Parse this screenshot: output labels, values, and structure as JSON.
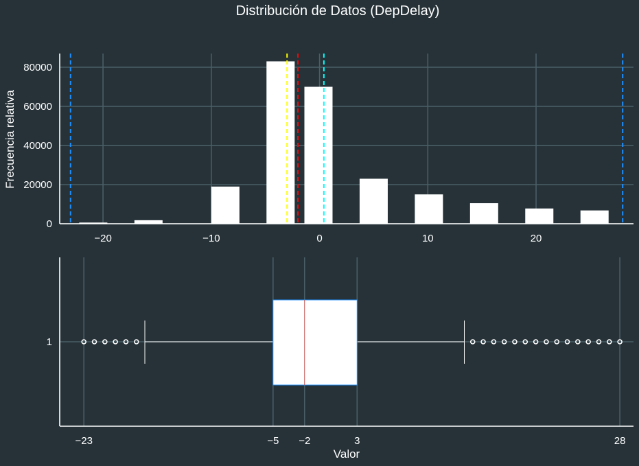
{
  "title": "Distribución de Datos (DepDelay)",
  "colors": {
    "background": "#263238",
    "bar": "#ffffff",
    "min_max_line": "#1e90ff",
    "mean_line": "#ffff00",
    "median_line": "#ff0000",
    "mode_line": "#00ffff",
    "box_edge": "#1e90ff",
    "box_median": "#c0504d"
  },
  "chart_data": [
    {
      "type": "bar",
      "ylabel": "Frecuencia relativa",
      "xlabel": "",
      "xlim": [
        -24,
        29
      ],
      "ylim": [
        0,
        87000
      ],
      "xticks": [
        -20,
        -10,
        0,
        10,
        20
      ],
      "xtick_labels": [
        "−20",
        "−10",
        "0",
        "10",
        "20"
      ],
      "yticks": [
        0,
        20000,
        40000,
        60000,
        80000
      ],
      "ytick_labels": [
        "0",
        "20000",
        "40000",
        "60000",
        "80000"
      ],
      "grid": true,
      "bars": [
        {
          "x0": -22.2,
          "x1": -19.6,
          "value": 600
        },
        {
          "x0": -17.1,
          "x1": -14.5,
          "value": 1800
        },
        {
          "x0": -10.0,
          "x1": -7.4,
          "value": 19000
        },
        {
          "x0": -4.9,
          "x1": -2.3,
          "value": 83000
        },
        {
          "x0": -1.4,
          "x1": 1.2,
          "value": 70000
        },
        {
          "x0": 3.7,
          "x1": 6.3,
          "value": 23000
        },
        {
          "x0": 8.8,
          "x1": 11.4,
          "value": 15000
        },
        {
          "x0": 13.9,
          "x1": 16.5,
          "value": 10500
        },
        {
          "x0": 19.0,
          "x1": 21.6,
          "value": 7800
        },
        {
          "x0": 24.1,
          "x1": 26.7,
          "value": 6800
        }
      ],
      "reference_lines": [
        {
          "x": -23,
          "color": "#1e90ff"
        },
        {
          "x": -3.0,
          "color": "#ffff00"
        },
        {
          "x": -2,
          "color": "#ff0000"
        },
        {
          "x": 0.4,
          "color": "#00ffff"
        },
        {
          "x": 28,
          "color": "#1e90ff"
        }
      ]
    },
    {
      "type": "box",
      "xlabel": "Valor",
      "ylabel": "",
      "xlim": [
        -25.3,
        29.3
      ],
      "ytick_labels": [
        "1"
      ],
      "xticks": [
        -23,
        -5,
        -2,
        3,
        28
      ],
      "xtick_labels": [
        "−23",
        "−5",
        "−2",
        "3",
        "28"
      ],
      "grid": true,
      "whisker_low": -17.2,
      "q1": -5,
      "median": -2,
      "q3": 3,
      "whisker_high": 13.2,
      "outliers_low": [
        -23,
        -22,
        -21,
        -20,
        -19,
        -18
      ],
      "outliers_high": [
        14,
        15,
        16,
        17,
        18,
        19,
        20,
        21,
        22,
        23,
        24,
        25,
        26,
        27,
        28
      ]
    }
  ]
}
